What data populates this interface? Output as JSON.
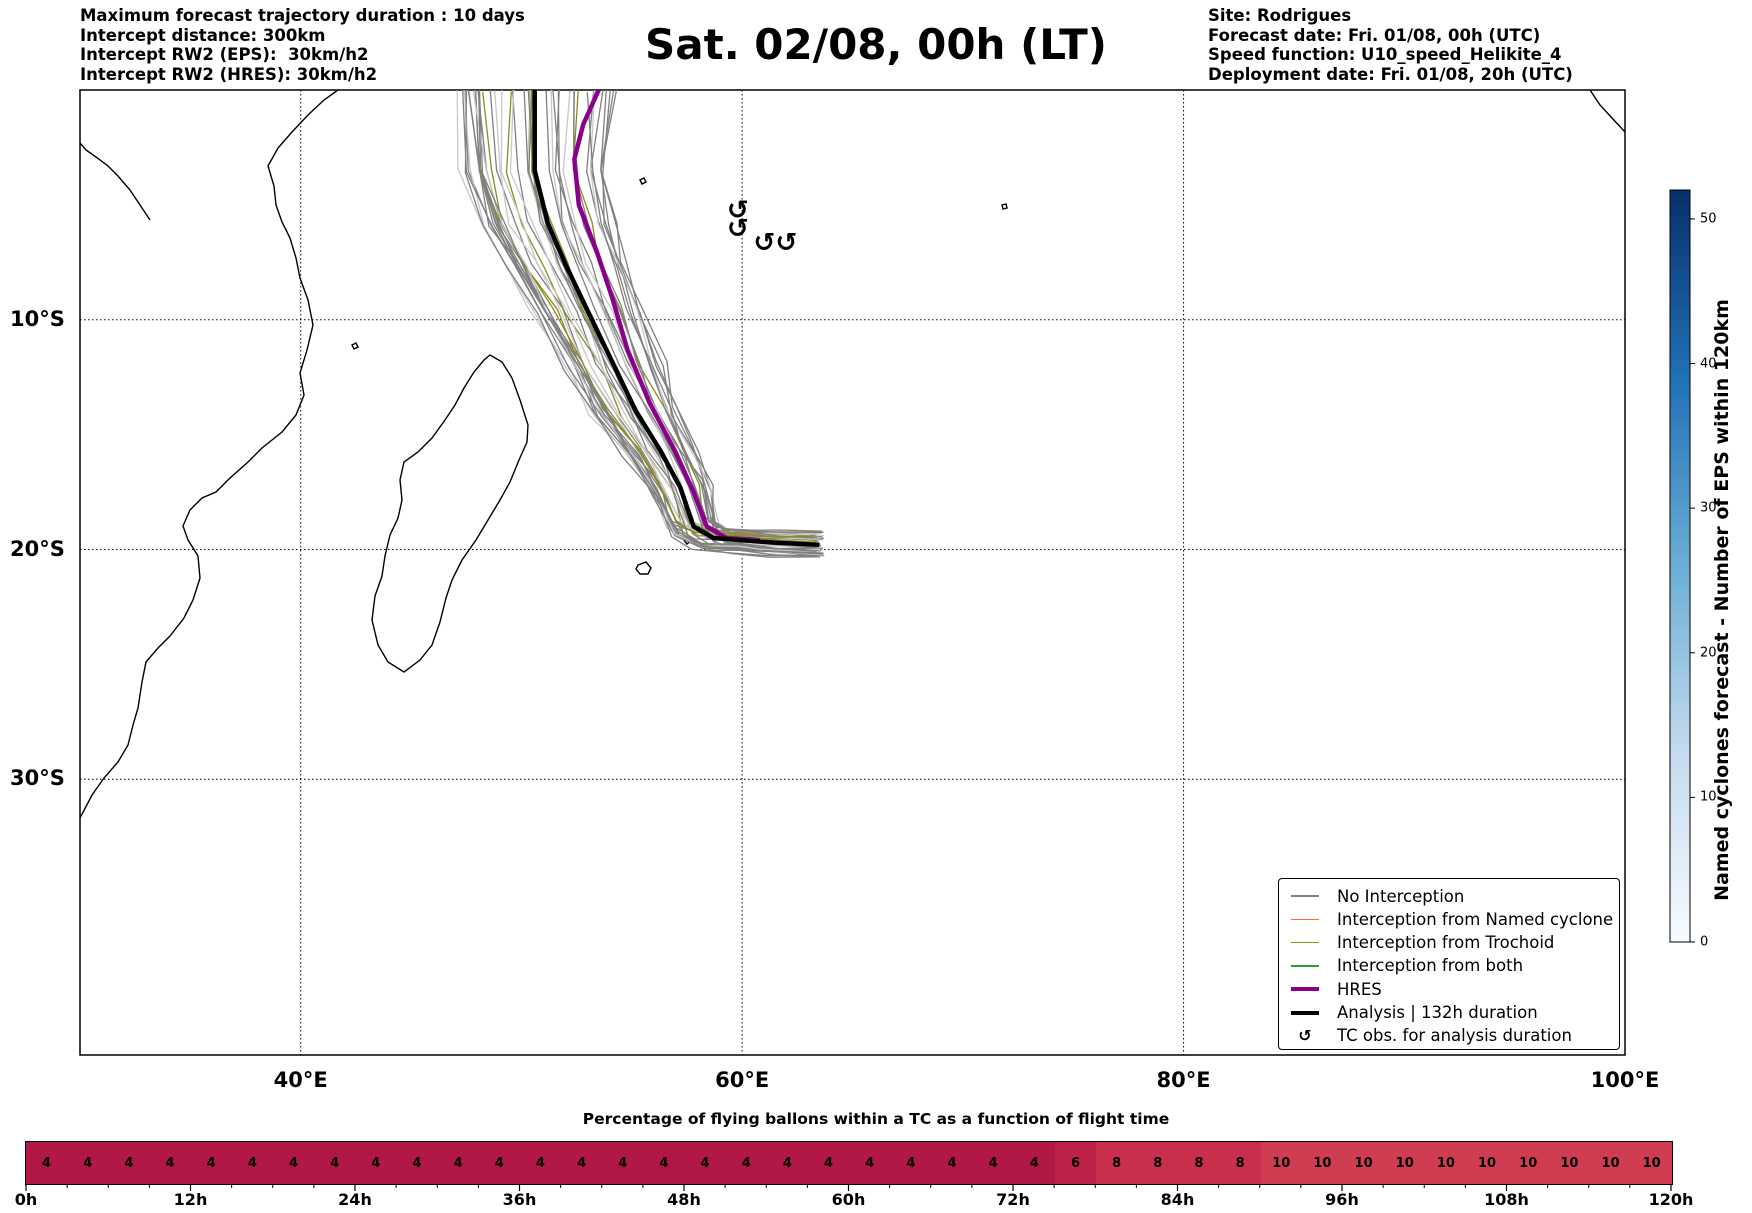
{
  "header_left": [
    "Maximum forecast trajectory duration : 10 days",
    "Intercept distance: 300km",
    "Intercept RW2 (EPS):  30km/h2",
    "Intercept RW2 (HRES): 30km/h2"
  ],
  "title": "Sat. 02/08, 00h (LT)",
  "header_right": [
    "Site: Rodrigues",
    "Forecast date: Fri. 01/08, 00h (UTC)",
    "Speed function: U10_speed_Helikite_4",
    "Deployment date: Fri. 01/08, 20h (UTC)"
  ],
  "map": {
    "lon_range": [
      30,
      100
    ],
    "lat_range": [
      -42,
      0
    ],
    "lat_ticks": [
      {
        "value": -10,
        "label": "10°S"
      },
      {
        "value": -20,
        "label": "20°S"
      },
      {
        "value": -30,
        "label": "30°S"
      }
    ],
    "lon_ticks": [
      {
        "value": 40,
        "label": "40°E"
      },
      {
        "value": 60,
        "label": "60°E"
      },
      {
        "value": 80,
        "label": "80°E"
      },
      {
        "value": 100,
        "label": "100°E"
      }
    ],
    "gridlines": "dotted",
    "analysis_track": [
      [
        50.6,
        0
      ],
      [
        50.6,
        -3.5
      ],
      [
        51.2,
        -5.8
      ],
      [
        52.0,
        -7.6
      ],
      [
        53.0,
        -9.6
      ],
      [
        54.2,
        -12.0
      ],
      [
        55.2,
        -14.0
      ],
      [
        56.3,
        -15.7
      ],
      [
        57.2,
        -17.3
      ],
      [
        57.8,
        -19.0
      ],
      [
        58.7,
        -19.5
      ],
      [
        60.0,
        -19.6
      ],
      [
        61.5,
        -19.7
      ],
      [
        63.5,
        -19.8
      ]
    ],
    "hres_track": [
      [
        53.5,
        0
      ],
      [
        52.8,
        -1.5
      ],
      [
        52.4,
        -3.0
      ],
      [
        52.6,
        -5.0
      ],
      [
        53.4,
        -7.0
      ],
      [
        54.1,
        -9.0
      ],
      [
        54.8,
        -11.3
      ],
      [
        55.8,
        -13.6
      ],
      [
        57.0,
        -15.8
      ],
      [
        57.8,
        -17.5
      ],
      [
        58.4,
        -19.0
      ],
      [
        59.3,
        -19.5
      ],
      [
        60.8,
        -19.6
      ]
    ],
    "tc_obs": [
      {
        "lon": 59.8,
        "lat": -5.6
      },
      {
        "lon": 59.8,
        "lat": -6.4
      },
      {
        "lon": 61.0,
        "lat": -7.0
      },
      {
        "lon": 62.0,
        "lat": -7.0
      }
    ],
    "tc_symbol": "↺"
  },
  "legend": {
    "position": "lower-right",
    "items": [
      {
        "label": "No Interception",
        "color": "#808080",
        "style": "line"
      },
      {
        "label": "Interception from Named cyclone",
        "color": "#ff6a33",
        "style": "line"
      },
      {
        "label": "Interception from Trochoid",
        "color": "#8b8b1e",
        "style": "line"
      },
      {
        "label": "Interception from both",
        "color": "#2ca02c",
        "style": "line"
      },
      {
        "label": "HRES",
        "color": "#8b008b",
        "style": "thick-line"
      },
      {
        "label": "Analysis | 132h duration",
        "color": "#000000",
        "style": "thick-line"
      },
      {
        "label": "TC obs. for analysis duration",
        "color": "#000000",
        "style": "symbol",
        "symbol": "↺"
      }
    ]
  },
  "colorbar": {
    "label": "Named cyclones forecast - Number of EPS within 120km",
    "range": [
      0,
      52
    ],
    "ticks": [
      "0",
      "10",
      "20",
      "30",
      "40",
      "50"
    ],
    "colormap": "Blues"
  },
  "percentage_bar": {
    "title": "Percentage of flying ballons within a TC as a function of flight time",
    "values": [
      4,
      4,
      4,
      4,
      4,
      4,
      4,
      4,
      4,
      4,
      4,
      4,
      4,
      4,
      4,
      4,
      4,
      4,
      4,
      4,
      4,
      4,
      4,
      4,
      4,
      6,
      8,
      8,
      8,
      8,
      10,
      10,
      10,
      10,
      10,
      10,
      10,
      10,
      10,
      10
    ],
    "colors": {
      "4": "#b11846",
      "6": "#bd2148",
      "8": "#c92f4d",
      "10": "#d03c52"
    },
    "tick_labels": [
      "0h",
      "12h",
      "24h",
      "36h",
      "48h",
      "60h",
      "72h",
      "84h",
      "96h",
      "108h",
      "120h"
    ]
  }
}
